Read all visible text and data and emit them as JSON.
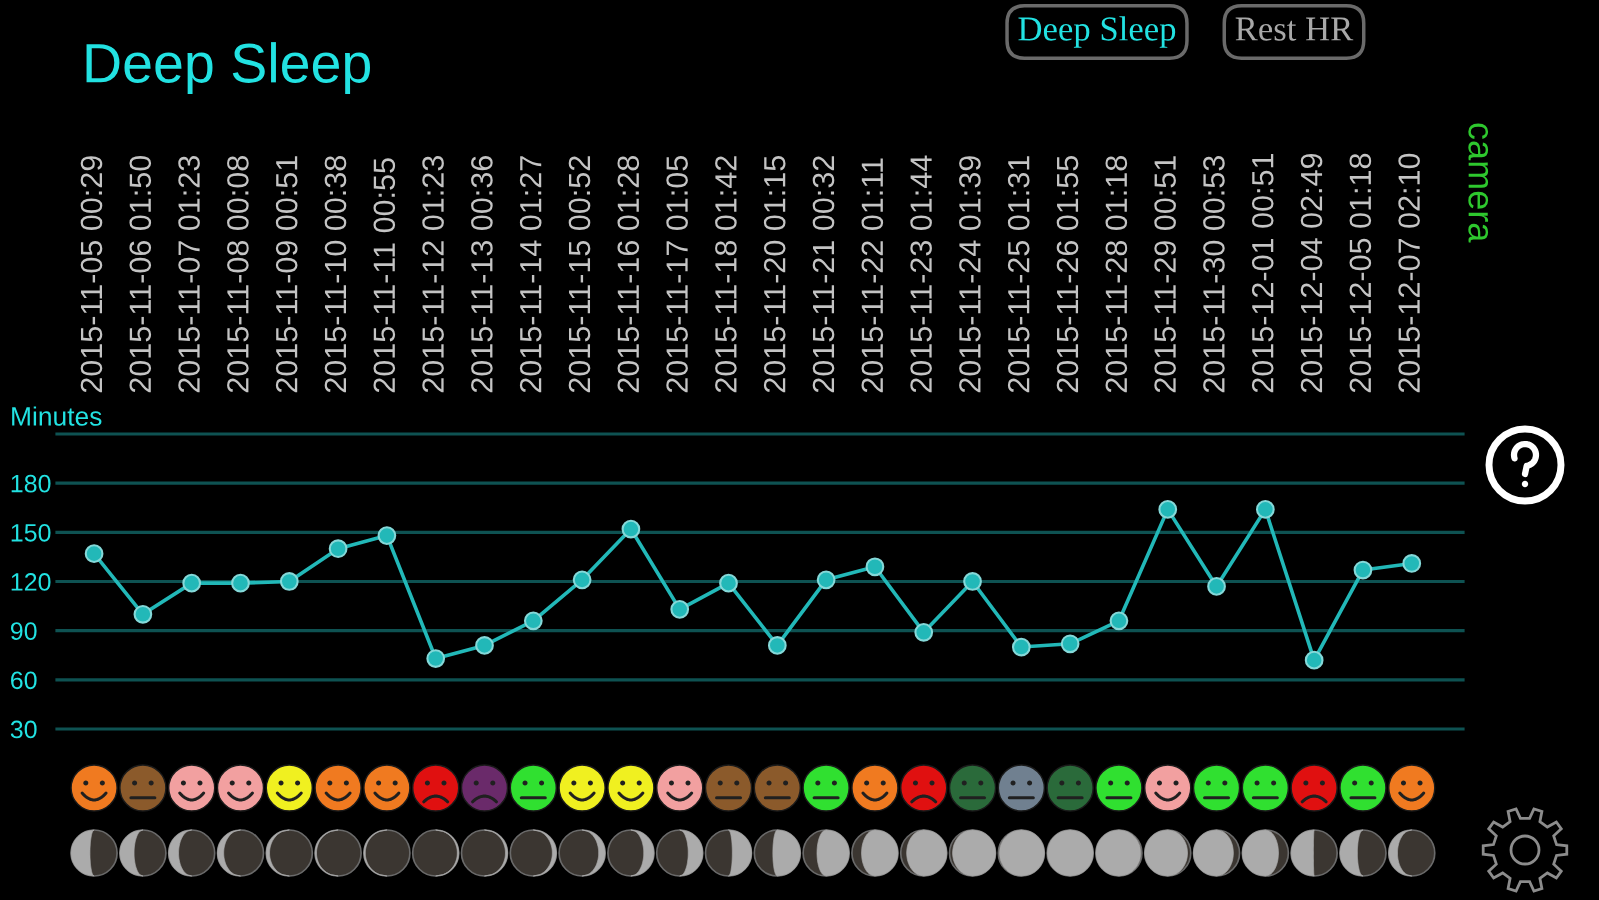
{
  "chart_data": {
    "type": "line",
    "title": "Deep Sleep",
    "ylabel": "Minutes",
    "categories": [
      "2015-11-05 00:29",
      "2015-11-06 01:50",
      "2015-11-07 01:23",
      "2015-11-08 00:08",
      "2015-11-09 00:51",
      "2015-11-10 00:38",
      "2015-11-11 00:55",
      "2015-11-12 01:23",
      "2015-11-13 00:36",
      "2015-11-14 01:27",
      "2015-11-15 00:52",
      "2015-11-16 01:28",
      "2015-11-17 01:05",
      "2015-11-18 01:42",
      "2015-11-20 01:15",
      "2015-11-21 00:32",
      "2015-11-22 01:11",
      "2015-11-23 01:44",
      "2015-11-24 01:39",
      "2015-11-25 01:31",
      "2015-11-26 01:55",
      "2015-11-28 01:18",
      "2015-11-29 00:51",
      "2015-11-30 00:53",
      "2015-12-01 00:51",
      "2015-12-04 02:49",
      "2015-12-05 01:18",
      "2015-12-07 02:10"
    ],
    "series": [
      {
        "color": "#22b8b8",
        "values": [
          137,
          100,
          119,
          119,
          120,
          140,
          148,
          73,
          81,
          96,
          121,
          152,
          103,
          119,
          81,
          121,
          129,
          89,
          120,
          80,
          82,
          96,
          164,
          117,
          164,
          72,
          127,
          131
        ]
      }
    ],
    "ylim": [
      30,
      210
    ],
    "yticks": [
      30,
      60,
      90,
      120,
      150,
      180,
      {
        "value": 210,
        "label": null
      }
    ],
    "grid": "y",
    "marker": "circle",
    "line_style": "solid",
    "annotations": [
      "Deep Sleep",
      "Rest HR",
      "camera"
    ]
  }
}
